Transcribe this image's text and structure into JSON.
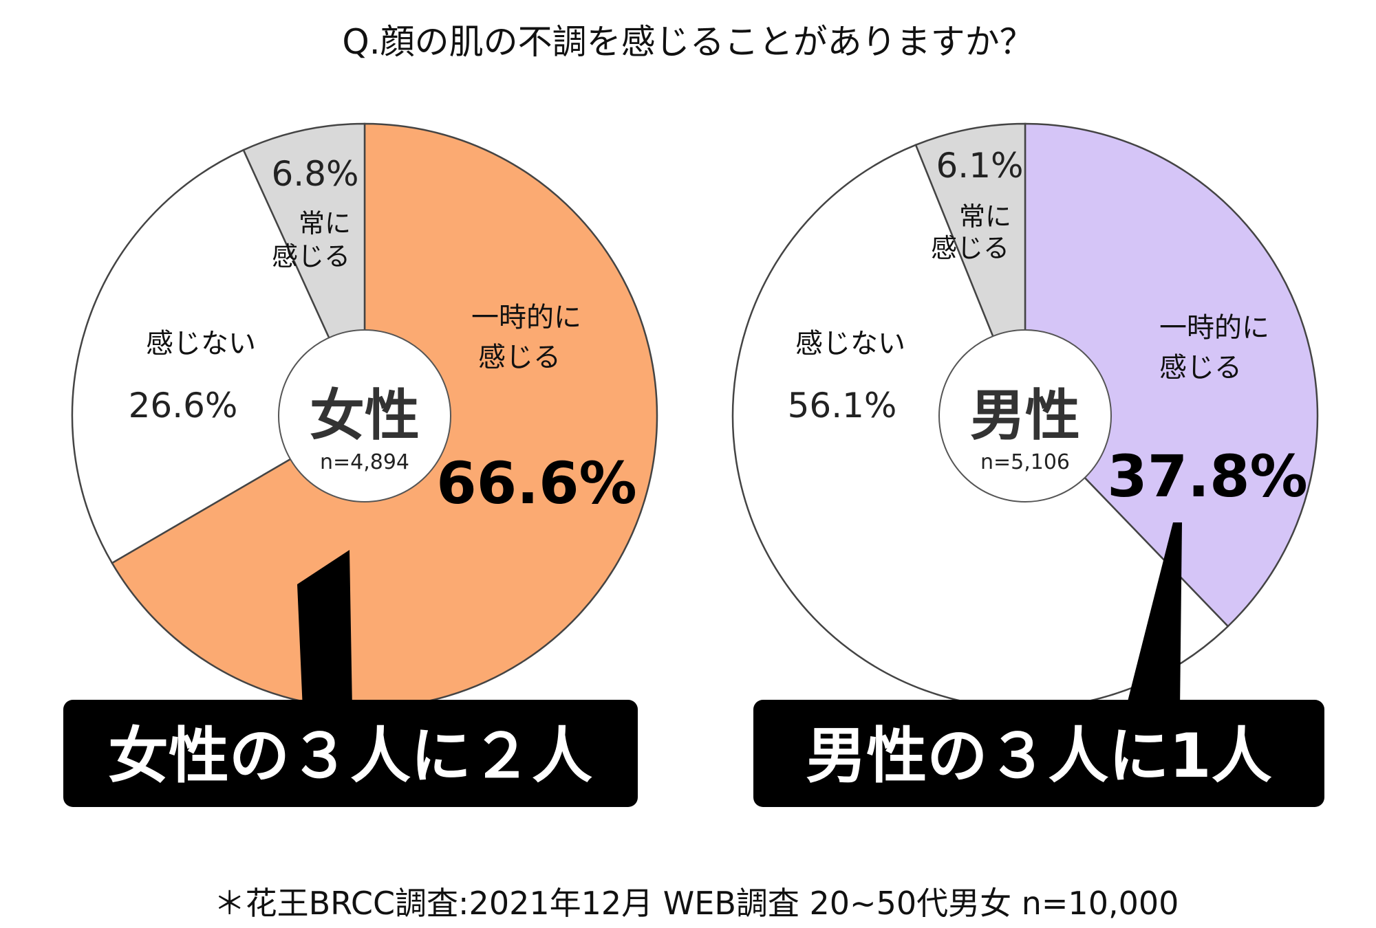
{
  "chart_data": [
    {
      "type": "pie",
      "title": "女性",
      "sample": "n=4,894",
      "slices": [
        {
          "label": "一時的に感じる",
          "label_lines": [
            "一時的に",
            "感じる"
          ],
          "value": 66.6,
          "value_text": "66.6%",
          "color": "#FBAA72"
        },
        {
          "label": "感じない",
          "label_lines": [
            "感じない"
          ],
          "value": 26.6,
          "value_text": "26.6%",
          "color": "#FFFFFF"
        },
        {
          "label": "常に感じる",
          "label_lines": [
            "常に",
            "感じる"
          ],
          "value": 6.8,
          "value_text": "6.8%",
          "color": "#D9D9D9"
        }
      ],
      "callout": "女性の３人に２人"
    },
    {
      "type": "pie",
      "title": "男性",
      "sample": "n=5,106",
      "slices": [
        {
          "label": "一時的に感じる",
          "label_lines": [
            "一時的に",
            "感じる"
          ],
          "value": 37.8,
          "value_text": "37.8%",
          "color": "#D5C5F7"
        },
        {
          "label": "感じない",
          "label_lines": [
            "感じない"
          ],
          "value": 56.1,
          "value_text": "56.1%",
          "color": "#FFFFFF"
        },
        {
          "label": "常に感じる",
          "label_lines": [
            "常に",
            "感じる"
          ],
          "value": 6.1,
          "value_text": "6.1%",
          "color": "#D9D9D9"
        }
      ],
      "callout": "男性の３人に1人"
    }
  ],
  "question": "Q.顔の肌の不調を感じることがありますか？",
  "footnote": "＊花王BRCC調査:2021年12月 WEB調査 20~50代男女 n=10,000"
}
